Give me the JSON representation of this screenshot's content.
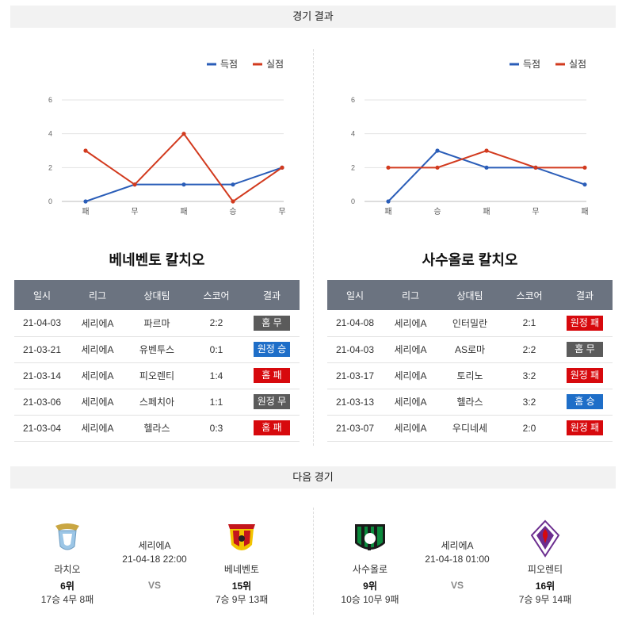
{
  "sections": {
    "results_title": "경기 결과",
    "next_title": "다음 경기"
  },
  "legend": {
    "scored": "득점",
    "conceded": "실점",
    "scored_color": "#2a5db8",
    "conceded_color": "#d23a1e"
  },
  "charts": [
    {
      "type": "line",
      "categories": [
        "패",
        "무",
        "패",
        "승",
        "무"
      ],
      "ylim": [
        0,
        6
      ],
      "yticks": [
        "0",
        "2",
        "4",
        "6"
      ],
      "series": [
        {
          "name": "득점",
          "values": [
            0,
            1,
            1,
            1,
            2
          ]
        },
        {
          "name": "실점",
          "values": [
            3,
            1,
            4,
            0,
            2
          ]
        }
      ]
    },
    {
      "type": "line",
      "categories": [
        "패",
        "승",
        "패",
        "무",
        "패"
      ],
      "ylim": [
        0,
        6
      ],
      "yticks": [
        "0",
        "2",
        "4",
        "6"
      ],
      "series": [
        {
          "name": "득점",
          "values": [
            0,
            3,
            2,
            2,
            1
          ]
        },
        {
          "name": "실점",
          "values": [
            2,
            2,
            3,
            2,
            2
          ]
        }
      ]
    }
  ],
  "headers": [
    "일시",
    "리그",
    "상대팀",
    "스코어",
    "결과"
  ],
  "teams": [
    {
      "name": "베네벤토 칼치오",
      "rows": [
        {
          "date": "21-04-03",
          "league": "세리에A",
          "opponent": "파르마",
          "score": "2:2",
          "result": "홈 무",
          "kind": "draw"
        },
        {
          "date": "21-03-21",
          "league": "세리에A",
          "opponent": "유벤투스",
          "score": "0:1",
          "result": "원정 승",
          "kind": "win"
        },
        {
          "date": "21-03-14",
          "league": "세리에A",
          "opponent": "피오렌티",
          "score": "1:4",
          "result": "홈 패",
          "kind": "loss"
        },
        {
          "date": "21-03-06",
          "league": "세리에A",
          "opponent": "스페치아",
          "score": "1:1",
          "result": "원정 무",
          "kind": "draw"
        },
        {
          "date": "21-03-04",
          "league": "세리에A",
          "opponent": "헬라스",
          "score": "0:3",
          "result": "홈 패",
          "kind": "loss"
        }
      ]
    },
    {
      "name": "사수올로 칼치오",
      "rows": [
        {
          "date": "21-04-08",
          "league": "세리에A",
          "opponent": "인터밀란",
          "score": "2:1",
          "result": "원정 패",
          "kind": "loss"
        },
        {
          "date": "21-04-03",
          "league": "세리에A",
          "opponent": "AS로마",
          "score": "2:2",
          "result": "홈 무",
          "kind": "draw"
        },
        {
          "date": "21-03-17",
          "league": "세리에A",
          "opponent": "토리노",
          "score": "3:2",
          "result": "원정 패",
          "kind": "loss"
        },
        {
          "date": "21-03-13",
          "league": "세리에A",
          "opponent": "헬라스",
          "score": "3:2",
          "result": "홈 승",
          "kind": "win"
        },
        {
          "date": "21-03-07",
          "league": "세리에A",
          "opponent": "우디네세",
          "score": "2:0",
          "result": "원정 패",
          "kind": "loss"
        }
      ]
    }
  ],
  "next_matches": [
    {
      "league": "세리에A",
      "datetime": "21-04-18 22:00",
      "vs": "VS",
      "home": {
        "name": "라치오",
        "rank": "6위",
        "record": "17승 4무 8패",
        "crest": "lazio-eagle-crest"
      },
      "away": {
        "name": "베네벤토",
        "rank": "15위",
        "record": "7승 9무 13패",
        "crest": "benevento-witch-crest"
      }
    },
    {
      "league": "세리에A",
      "datetime": "21-04-18 01:00",
      "vs": "VS",
      "home": {
        "name": "사수올로",
        "rank": "9위",
        "record": "10승 10무 9패",
        "crest": "sassuolo-crest"
      },
      "away": {
        "name": "피오렌티",
        "rank": "16위",
        "record": "7승 9무 14패",
        "crest": "fiorentina-lily-crest"
      }
    }
  ]
}
